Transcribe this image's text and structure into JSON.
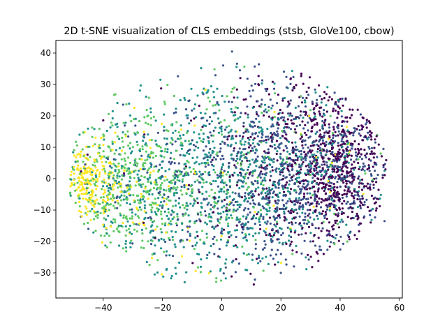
{
  "chart_data": {
    "type": "scatter",
    "title": "2D t-SNE visualization of CLS embeddings (stsb, GloVe100, cbow)",
    "xlabel": "",
    "ylabel": "",
    "xlim": [
      -56,
      61
    ],
    "ylim": [
      -38,
      44
    ],
    "xticks": [
      -40,
      -20,
      0,
      20,
      40,
      60
    ],
    "yticks": [
      -30,
      -20,
      -10,
      0,
      10,
      20,
      30,
      40
    ],
    "grid": false,
    "legend": "none",
    "colormap": [
      "#440154",
      "#3b528b",
      "#21918c",
      "#5ec962",
      "#fde725"
    ],
    "point_count": 3600,
    "random_seed": 7,
    "dominant_regions": [
      {
        "color": "#fde725",
        "center": [
          -46,
          -1
        ],
        "spread": [
          5,
          6
        ],
        "weight": 0.06
      },
      {
        "color": "#5ec962",
        "center": [
          -32,
          -3
        ],
        "spread": [
          12,
          12
        ],
        "weight": 0.14
      },
      {
        "color": "#21918c",
        "center": [
          -5,
          -2
        ],
        "spread": [
          18,
          15
        ],
        "weight": 0.28
      },
      {
        "color": "#3b528b",
        "center": [
          22,
          3
        ],
        "spread": [
          16,
          15
        ],
        "weight": 0.3
      },
      {
        "color": "#440154",
        "center": [
          38,
          4
        ],
        "spread": [
          10,
          14
        ],
        "weight": 0.22
      }
    ],
    "notable_points": [
      {
        "x": 3.5,
        "y": 40.5,
        "color": "#3b528b"
      },
      {
        "x": 55,
        "y": -13.5,
        "color": "#3b528b"
      },
      {
        "x": 55,
        "y": 2.5,
        "color": "#21918c"
      },
      {
        "x": -48,
        "y": 14,
        "color": "#21918c"
      },
      {
        "x": -45,
        "y": -16,
        "color": "#3b528b"
      }
    ]
  }
}
